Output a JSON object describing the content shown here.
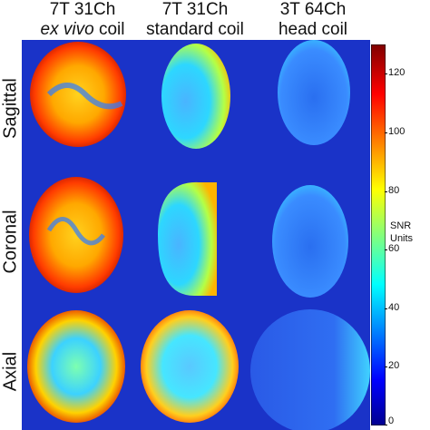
{
  "columns": [
    {
      "line1": "7T 31Ch",
      "line2": "ex vivo coil",
      "italic_part": "ex vivo",
      "rest": " coil"
    },
    {
      "line1": "7T 31Ch",
      "line2": "standard coil"
    },
    {
      "line1": "3T 64Ch",
      "line2": "head coil"
    }
  ],
  "rows": [
    "Sagittal",
    "Coronal",
    "Axial"
  ],
  "colorbar": {
    "label_line1": "SNR",
    "label_line2": "Units",
    "ticks": [
      "120",
      "100",
      "80",
      "60",
      "40",
      "20",
      "0"
    ],
    "range": [
      0,
      130
    ],
    "colormap": "jet"
  },
  "colors": {
    "background_panel": "#1a33c8"
  }
}
